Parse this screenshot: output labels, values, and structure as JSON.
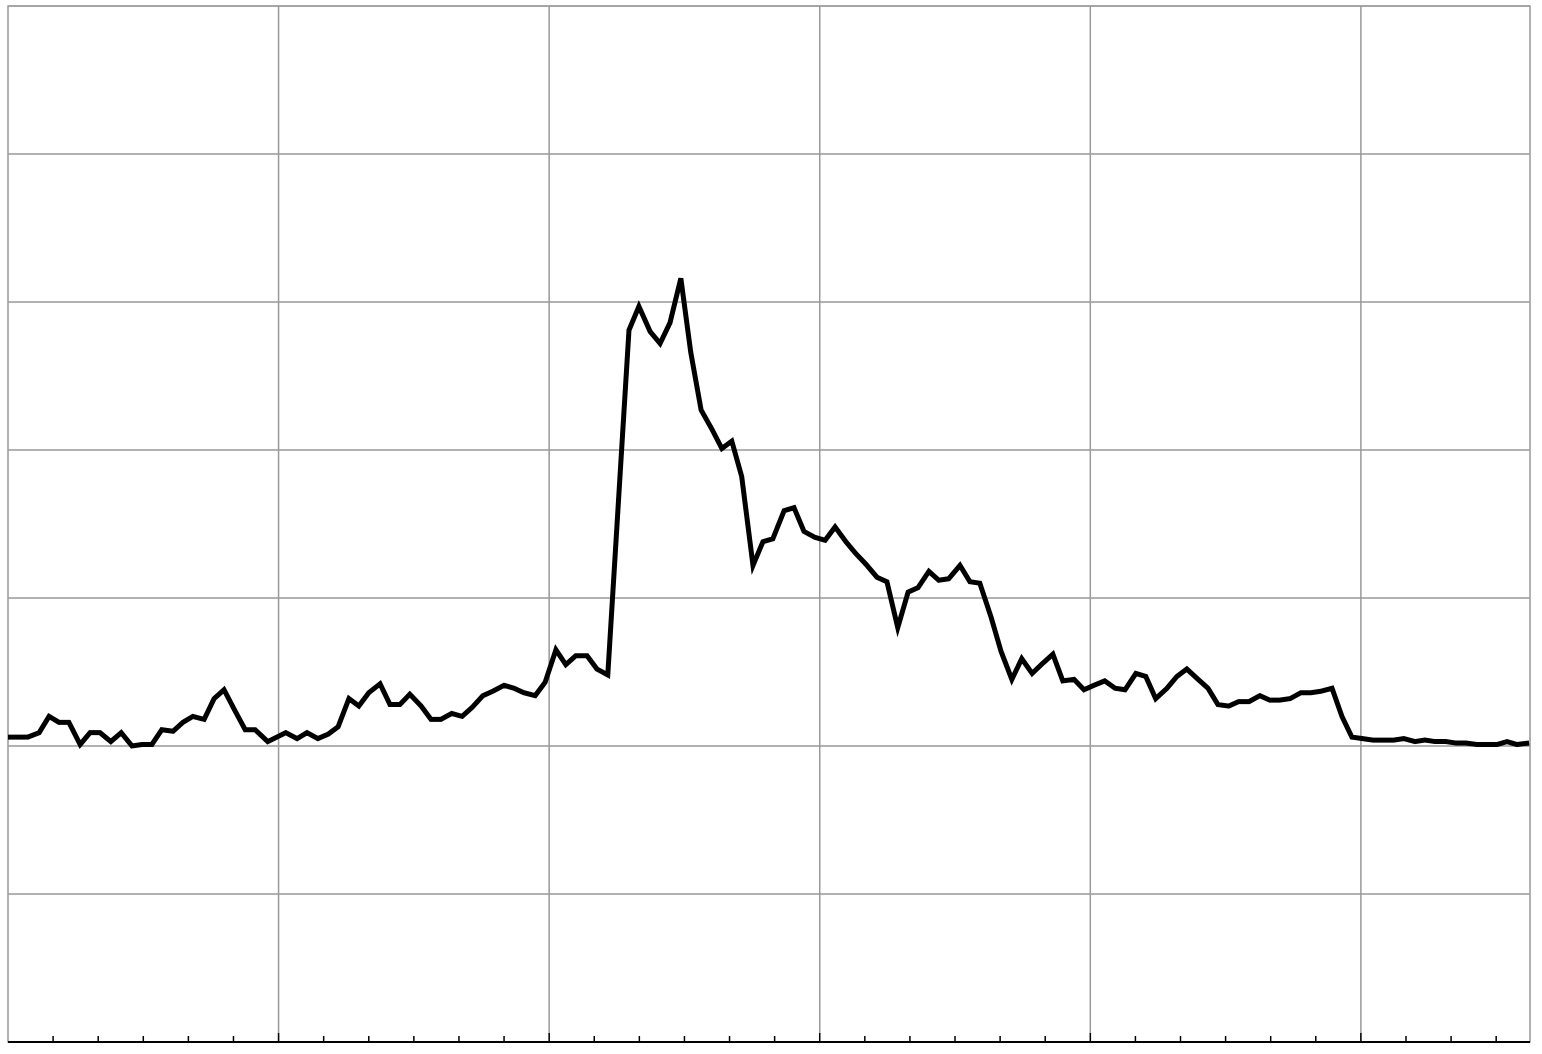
{
  "chart_data": {
    "type": "line",
    "grid": true,
    "xlim": [
      0,
      33.75
    ],
    "ylim": [
      -2,
      5
    ],
    "xticks": [
      6,
      12,
      18,
      24,
      30
    ],
    "xminorticks": [
      1,
      2,
      3,
      4,
      5,
      7,
      8,
      9,
      10,
      11,
      13,
      14,
      15,
      16,
      17,
      19,
      20,
      21,
      22,
      23,
      25,
      26,
      27,
      28,
      29,
      31,
      32,
      33
    ],
    "yticks": [
      -2,
      -1,
      0,
      1,
      2,
      3,
      4,
      5
    ],
    "series": [
      {
        "color": "#000000",
        "x": [
          0.0,
          0.44,
          0.69,
          0.91,
          1.13,
          1.35,
          1.6,
          1.82,
          2.04,
          2.28,
          2.51,
          2.75,
          2.97,
          3.19,
          3.41,
          3.66,
          3.88,
          4.1,
          4.35,
          4.57,
          4.79,
          5.03,
          5.26,
          5.48,
          5.76,
          6.16,
          6.41,
          6.63,
          6.87,
          7.1,
          7.32,
          7.56,
          7.78,
          8.0,
          8.25,
          8.47,
          8.69,
          8.91,
          9.16,
          9.38,
          9.6,
          9.84,
          10.07,
          10.29,
          10.53,
          10.75,
          11.0,
          11.22,
          11.44,
          11.69,
          11.91,
          12.15,
          12.37,
          12.59,
          12.84,
          13.06,
          13.3,
          13.77,
          13.99,
          14.24,
          14.46,
          14.68,
          14.92,
          15.14,
          15.37,
          15.61,
          15.83,
          16.05,
          16.27,
          16.52,
          16.74,
          16.96,
          17.21,
          17.43,
          17.65,
          17.89,
          18.12,
          18.34,
          18.58,
          18.8,
          19.02,
          19.27,
          19.49,
          19.73,
          19.96,
          20.18,
          20.42,
          20.64,
          20.86,
          21.11,
          21.33,
          21.55,
          21.8,
          22.02,
          22.26,
          22.48,
          22.71,
          22.95,
          23.17,
          23.39,
          23.64,
          23.86,
          24.08,
          24.32,
          24.55,
          24.77,
          25.01,
          25.23,
          25.45,
          25.7,
          25.92,
          26.14,
          26.39,
          26.61,
          26.83,
          27.07,
          27.29,
          27.52,
          27.76,
          27.98,
          28.2,
          28.43,
          28.67,
          28.89,
          29.11,
          29.36,
          29.58,
          29.8,
          30.04,
          30.27,
          30.51,
          30.73,
          30.95,
          31.2,
          31.42,
          31.64,
          31.88,
          32.11,
          32.33,
          32.57,
          32.79,
          33.02,
          33.24,
          33.46,
          33.73
        ],
        "values": [
          0.06,
          0.06,
          0.09,
          0.2,
          0.16,
          0.16,
          0.01,
          0.09,
          0.09,
          0.03,
          0.09,
          0.0,
          0.01,
          0.01,
          0.11,
          0.1,
          0.16,
          0.2,
          0.18,
          0.32,
          0.38,
          0.24,
          0.11,
          0.11,
          0.03,
          0.09,
          0.05,
          0.09,
          0.05,
          0.08,
          0.13,
          0.32,
          0.27,
          0.36,
          0.42,
          0.28,
          0.28,
          0.35,
          0.27,
          0.18,
          0.18,
          0.22,
          0.2,
          0.26,
          0.34,
          0.37,
          0.41,
          0.39,
          0.36,
          0.34,
          0.43,
          0.65,
          0.55,
          0.61,
          0.61,
          0.52,
          0.48,
          2.81,
          2.97,
          2.8,
          2.72,
          2.86,
          3.16,
          2.66,
          2.27,
          2.14,
          2.01,
          2.06,
          1.82,
          1.22,
          1.38,
          1.4,
          1.59,
          1.61,
          1.45,
          1.41,
          1.39,
          1.48,
          1.38,
          1.3,
          1.23,
          1.14,
          1.11,
          0.8,
          1.04,
          1.07,
          1.18,
          1.12,
          1.13,
          1.22,
          1.11,
          1.1,
          0.87,
          0.64,
          0.45,
          0.59,
          0.49,
          0.56,
          0.62,
          0.44,
          0.45,
          0.38,
          0.41,
          0.44,
          0.39,
          0.38,
          0.49,
          0.47,
          0.32,
          0.39,
          0.47,
          0.52,
          0.45,
          0.39,
          0.28,
          0.27,
          0.3,
          0.3,
          0.34,
          0.31,
          0.31,
          0.32,
          0.36,
          0.36,
          0.37,
          0.39,
          0.2,
          0.06,
          0.05,
          0.04,
          0.04,
          0.04,
          0.05,
          0.03,
          0.04,
          0.03,
          0.03,
          0.02,
          0.02,
          0.01,
          0.01,
          0.01,
          0.03,
          0.01,
          0.02
        ]
      }
    ]
  }
}
